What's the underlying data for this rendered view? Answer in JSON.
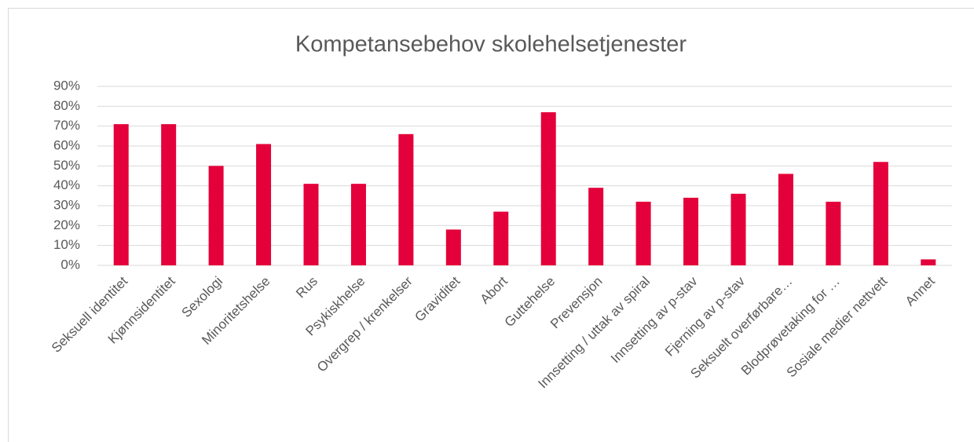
{
  "chart_data": {
    "type": "bar",
    "title": "Kompetansebehov skolehelsetjenester",
    "categories": [
      "Seksuell identitet",
      "Kjønnsidentitet",
      "Sexologi",
      "Minoritetshelse",
      "Rus",
      "Psykiskhelse",
      "Overgrep / krenkelser",
      "Graviditet",
      "Abort",
      "Guttehelse",
      "Prevensjon",
      "Innsetting / uttak av spiral",
      "Innsetting av p-stav",
      "Fjerning av p-stav",
      "Seksuelt overførbare…",
      "Blodprøvetaking for …",
      "Sosiale medier nettvett",
      "Annet"
    ],
    "values": [
      71,
      71,
      50,
      61,
      41,
      41,
      66,
      18,
      27,
      77,
      39,
      32,
      34,
      36,
      46,
      32,
      52,
      3
    ],
    "color": "#e4003a",
    "ylim": [
      0,
      90
    ],
    "yticks": [
      {
        "value": 0,
        "label": "0%"
      },
      {
        "value": 10,
        "label": "10%"
      },
      {
        "value": 20,
        "label": "20%"
      },
      {
        "value": 30,
        "label": "30%"
      },
      {
        "value": 40,
        "label": "40%"
      },
      {
        "value": 50,
        "label": "50%"
      },
      {
        "value": 60,
        "label": "60%"
      },
      {
        "value": 70,
        "label": "70%"
      },
      {
        "value": 80,
        "label": "80%"
      },
      {
        "value": 90,
        "label": "90%"
      }
    ],
    "grid": true
  }
}
